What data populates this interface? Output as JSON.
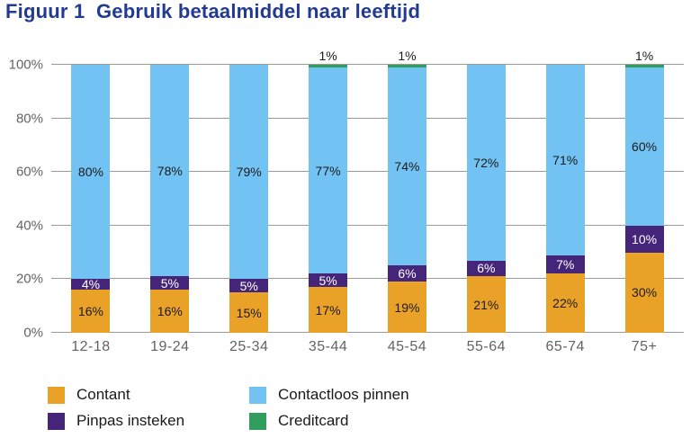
{
  "chart_data": {
    "type": "bar",
    "stacked": true,
    "title": "Figuur 1  Gebruik betaalmiddel naar leeftijd",
    "categories": [
      "12-18",
      "19-24",
      "25-34",
      "35-44",
      "45-54",
      "55-64",
      "65-74",
      "75+"
    ],
    "series": [
      {
        "name": "Contant",
        "color": "#E9A227",
        "label_style": "dark",
        "values": [
          16,
          16,
          15,
          17,
          19,
          21,
          22,
          30
        ]
      },
      {
        "name": "Pinpas insteken",
        "color": "#452579",
        "label_style": "light",
        "values": [
          4,
          5,
          5,
          5,
          6,
          6,
          7,
          10
        ]
      },
      {
        "name": "Contactloos pinnen",
        "color": "#72C3F3",
        "label_style": "dark",
        "fill_remainder": true,
        "values": [
          80,
          78,
          79,
          77,
          74,
          72,
          71,
          60
        ]
      },
      {
        "name": "Creditcard",
        "color": "#319E5D",
        "label_style": "dark",
        "label_position": "above",
        "values": [
          0,
          0,
          0,
          1,
          1,
          0,
          0,
          1
        ]
      }
    ],
    "ylim": [
      0,
      100
    ],
    "yticks": [
      0,
      20,
      40,
      60,
      80,
      100
    ],
    "ytick_suffix": "%",
    "value_suffix": "%",
    "grid": true,
    "legend": {
      "position": "bottom",
      "items": [
        "Contant",
        "Contactloos pinnen",
        "Pinpas insteken",
        "Creditcard"
      ]
    }
  },
  "colors": {
    "title": "#233A91",
    "gridline": "#9A9A9A",
    "axis_label": "#636363",
    "label_dark": "#1A1A1A",
    "label_light": "#FFFFFF",
    "background": "#FFFFFF"
  }
}
